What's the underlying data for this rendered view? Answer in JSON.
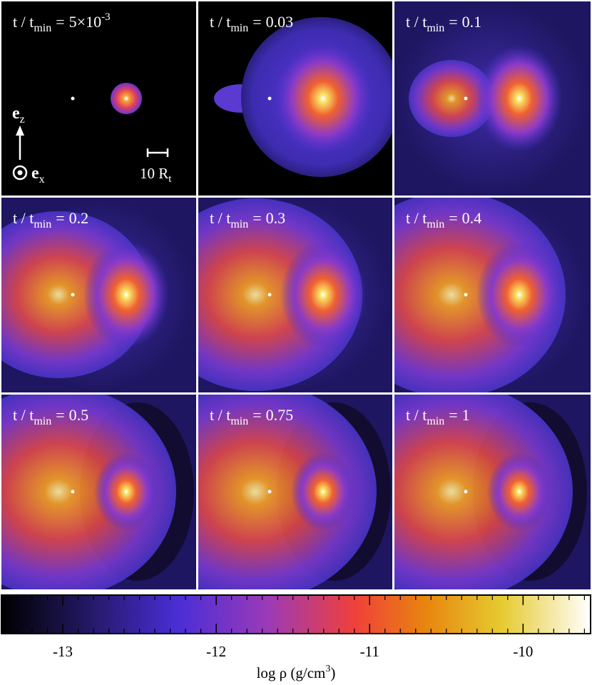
{
  "panel_label": {
    "prefix": "t / t",
    "subscript": "min",
    "equals": "="
  },
  "panels": [
    {
      "value": "5×10",
      "exponent": "-3"
    },
    {
      "value": "0.03"
    },
    {
      "value": "0.1"
    },
    {
      "value": "0.2"
    },
    {
      "value": "0.3"
    },
    {
      "value": "0.4"
    },
    {
      "value": "0.5"
    },
    {
      "value": "0.75"
    },
    {
      "value": "1"
    }
  ],
  "annotations": {
    "axis_up": {
      "symbol": "e",
      "subscript": "z"
    },
    "axis_out": {
      "symbol": "e",
      "subscript": "x"
    },
    "scale_bar": {
      "text": "10 R",
      "subscript": "t"
    }
  },
  "colorbar": {
    "label": "log ρ (g/cm",
    "label_superscript": "3",
    "label_end": ")",
    "lim": [
      -13.4,
      -9.56
    ],
    "ticks": [
      -13,
      -12,
      -11,
      -10
    ],
    "minor_ticks": [
      -13.4,
      -13.3,
      -13.2,
      -13.1,
      -12.9,
      -12.8,
      -12.7,
      -12.6,
      -12.5,
      -12.4,
      -12.3,
      -12.2,
      -12.1,
      -11.9,
      -11.8,
      -11.7,
      -11.6,
      -11.5,
      -11.4,
      -11.3,
      -11.2,
      -11.1,
      -10.9,
      -10.8,
      -10.7,
      -10.6,
      -10.5,
      -10.4,
      -10.3,
      -10.2,
      -10.1,
      -9.9,
      -9.8,
      -9.7,
      -9.6
    ]
  }
}
